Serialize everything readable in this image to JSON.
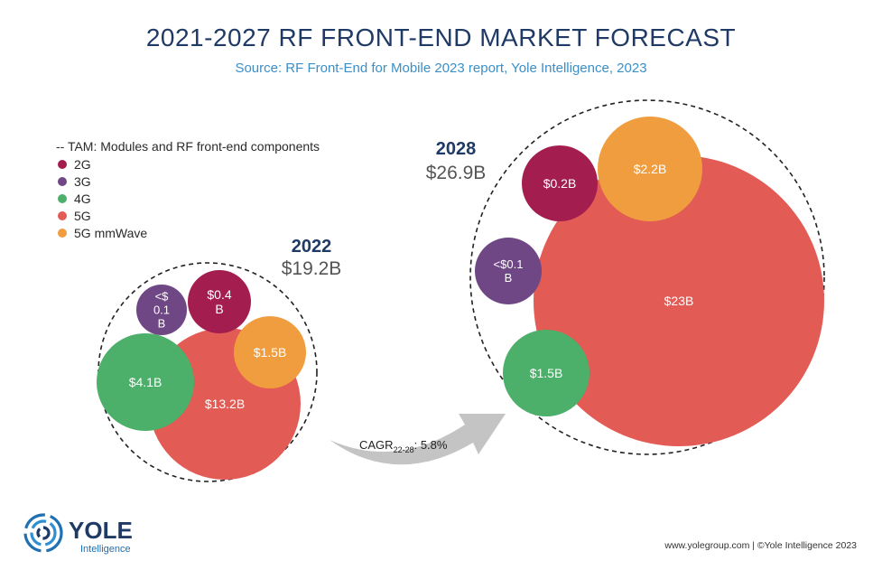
{
  "title": "2021-2027 RF FRONT-END MARKET FORECAST",
  "subtitle": "Source:  RF Front-End for Mobile 2023 report, Yole Intelligence, 2023",
  "legend": {
    "tam_label": "-- TAM: Modules and RF front-end components",
    "items": [
      {
        "label": "2G",
        "color": "#a31e4f"
      },
      {
        "label": "3G",
        "color": "#6f4784"
      },
      {
        "label": "4G",
        "color": "#4caf6a"
      },
      {
        "label": "5G",
        "color": "#e35b55"
      },
      {
        "label": "5G mmWave",
        "color": "#f09d3f"
      }
    ]
  },
  "chart_data": {
    "type": "bubble",
    "groups": [
      {
        "year": "2022",
        "total": "$19.2B",
        "bubbles": [
          {
            "label": "$13.2B",
            "value": 13.2,
            "color": "#e35b55",
            "series": "5G"
          },
          {
            "label": "$4.1B",
            "value": 4.1,
            "color": "#4caf6a",
            "series": "4G"
          },
          {
            "label": "$1.5B",
            "value": 1.5,
            "color": "#f09d3f",
            "series": "5G mmWave"
          },
          {
            "label": "$0.4 B",
            "value": 0.4,
            "color": "#a31e4f",
            "series": "2G"
          },
          {
            "label": "<$ 0.1 B",
            "value": 0.1,
            "color": "#6f4784",
            "series": "3G"
          }
        ]
      },
      {
        "year": "2028",
        "total": "$26.9B",
        "bubbles": [
          {
            "label": "$23B",
            "value": 23,
            "color": "#e35b55",
            "series": "5G"
          },
          {
            "label": "$2.2B",
            "value": 2.2,
            "color": "#f09d3f",
            "series": "5G mmWave"
          },
          {
            "label": "$0.2B",
            "value": 0.2,
            "color": "#a31e4f",
            "series": "2G"
          },
          {
            "label": "<$0.1 B",
            "value": 0.1,
            "color": "#6f4784",
            "series": "3G"
          },
          {
            "label": "$1.5B",
            "value": 1.5,
            "color": "#4caf6a",
            "series": "4G"
          }
        ]
      }
    ],
    "cagr": {
      "prefix": "CAGR",
      "subscript": "22-28",
      "value": ": 5.8%"
    }
  },
  "logo": {
    "name": "YOLE",
    "tagline": "Intelligence",
    "colors": {
      "blue": "#1f6fb3",
      "navy": "#203a66"
    }
  },
  "footer": "www.yolegroup.com | ©Yole Intelligence 2023"
}
